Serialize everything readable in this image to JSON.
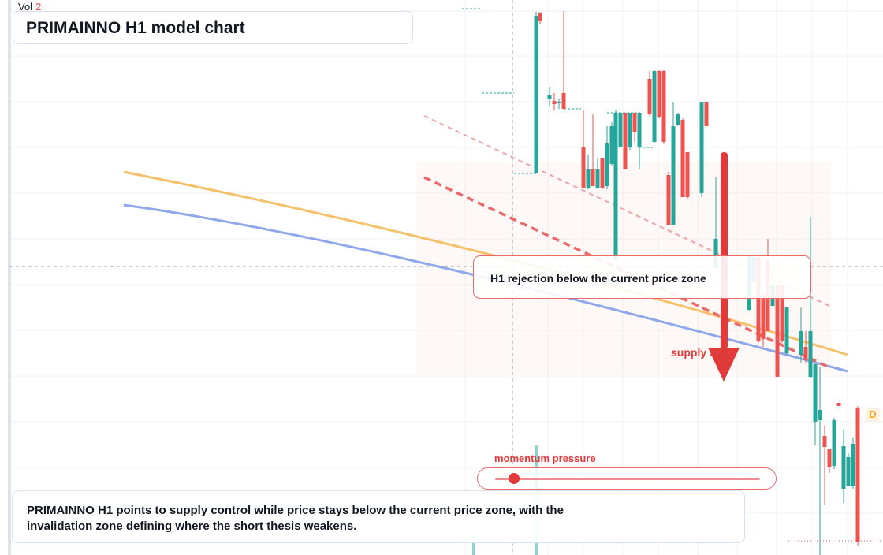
{
  "volume": {
    "label": "Vol",
    "value": "2"
  },
  "title": "PRIMAINNO H1 model chart",
  "annotations": {
    "rejection": "H1 rejection below the current price zone",
    "supply": "supply zone",
    "momentum": "momentum pressure",
    "summary": "PRIMAINNO H1 points to supply control while price stays below the current price zone, with the invalidation zone defining where the short thesis weakens."
  },
  "momentum_level": 0.07,
  "badge": "D",
  "colors": {
    "bull": "#26a69a",
    "bear": "#ef5350",
    "arrow": "#e03a3a",
    "orange_line": "#f5c26b",
    "blue_line": "#8fa8ec",
    "dashed_trend": "#e86a6a"
  }
}
